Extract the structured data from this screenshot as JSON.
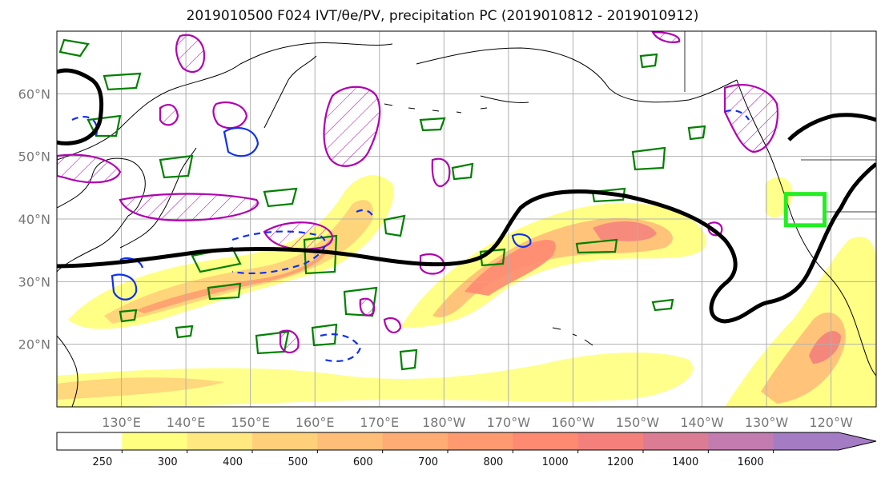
{
  "title": "2019010500 F024 IVT/θe/PV, precipitation PC (2019010812 - 2019010912)",
  "map": {
    "lat_ticks": [
      {
        "lat": 60,
        "label": "60°N"
      },
      {
        "lat": 50,
        "label": "50°N"
      },
      {
        "lat": 40,
        "label": "40°N"
      },
      {
        "lat": 30,
        "label": "30°N"
      },
      {
        "lat": 20,
        "label": "20°N"
      }
    ],
    "lon_ticks": [
      {
        "lon": 130,
        "label": "130°E"
      },
      {
        "lon": 140,
        "label": "140°E"
      },
      {
        "lon": 150,
        "label": "150°E"
      },
      {
        "lon": 160,
        "label": "160°E"
      },
      {
        "lon": 170,
        "label": "170°E"
      },
      {
        "lon": 180,
        "label": "180°W"
      },
      {
        "lon": 190,
        "label": "170°W"
      },
      {
        "lon": 200,
        "label": "160°W"
      },
      {
        "lon": 210,
        "label": "150°W"
      },
      {
        "lon": 220,
        "label": "140°W"
      },
      {
        "lon": 230,
        "label": "130°W"
      },
      {
        "lon": 240,
        "label": "120°W"
      }
    ],
    "extent": {
      "lon_min": 120,
      "lon_max": 247,
      "lat_min": 10,
      "lat_max": 70
    },
    "target_box": {
      "lon_min": 233,
      "lon_max": 239,
      "lat_min": 39,
      "lat_max": 44,
      "color": "#22ee22"
    },
    "colors": {
      "theta_e_contour": "#000000",
      "pv_contour": "#008000",
      "pv_hatched": "#b000b0",
      "neg_contour": "#1030ee",
      "grid": "#b0b0b0"
    }
  },
  "colorbar": {
    "ticks": [
      "250",
      "300",
      "400",
      "500",
      "600",
      "700",
      "800",
      "1000",
      "1200",
      "1400",
      "1600"
    ],
    "colors": [
      "#ffffff",
      "#ffff80",
      "#ffe880",
      "#ffd07a",
      "#ffbe78",
      "#ffab74",
      "#ff9a70",
      "#ff8a72",
      "#f4807c",
      "#dc7c94",
      "#c27cb0",
      "#a47cc4"
    ]
  }
}
